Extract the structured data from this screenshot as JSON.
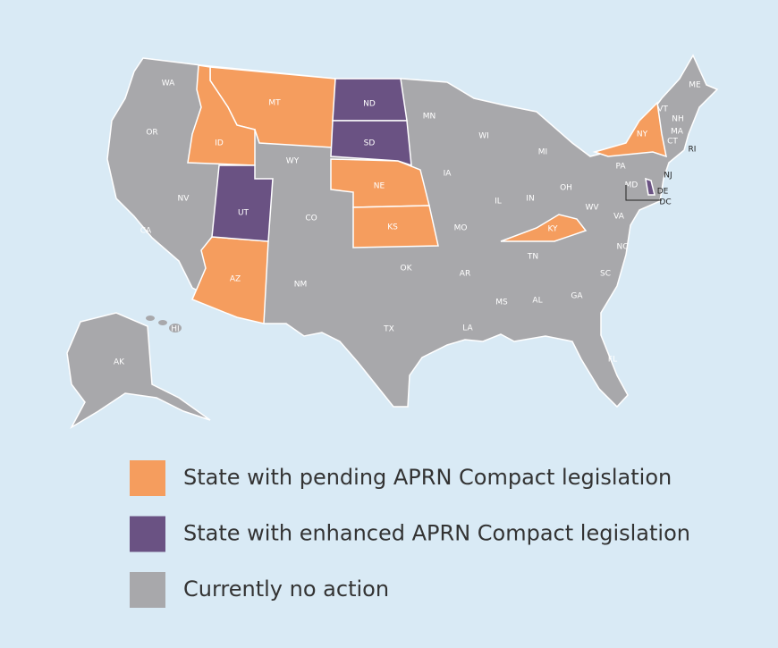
{
  "map": {
    "categories": [
      {
        "label": "State with pending APRN Compact legislation",
        "color": "#f59d5e",
        "states": [
          "MT",
          "ID",
          "NE",
          "KS",
          "AZ",
          "NY",
          "KY"
        ]
      },
      {
        "label": "State with enhanced APRN Compact legislation",
        "color": "#6a5283",
        "states": [
          "ND",
          "SD",
          "UT",
          "DE"
        ]
      },
      {
        "label": "Currently no action",
        "color": "#a8a8ab",
        "states": [
          "WA",
          "OR",
          "CA",
          "NV",
          "WY",
          "CO",
          "NM",
          "TX",
          "OK",
          "MN",
          "IA",
          "MO",
          "AR",
          "LA",
          "WI",
          "IL",
          "MI",
          "IN",
          "OH",
          "TN",
          "MS",
          "AL",
          "GA",
          "FL",
          "SC",
          "NC",
          "VA",
          "WV",
          "PA",
          "MD",
          "DC",
          "NJ",
          "CT",
          "RI",
          "MA",
          "NH",
          "VT",
          "ME",
          "AK",
          "HI"
        ]
      }
    ]
  }
}
